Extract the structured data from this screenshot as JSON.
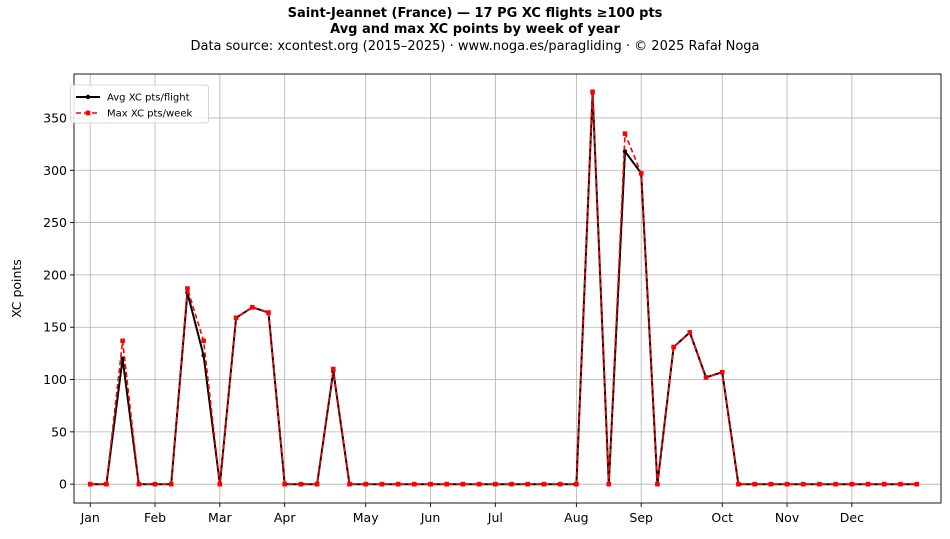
{
  "header": {
    "title": "Saint-Jeannet (France)  —  17 PG XC flights ≥100 pts",
    "subtitle": "Avg and max XC points by week of year",
    "source": "Data source: xcontest.org (2015–2025)  ·  www.noga.es/paragliding  ·  © 2025 Rafał Noga"
  },
  "chart_data": {
    "type": "line",
    "title": "Saint-Jeannet (France)  —  17 PG XC flights ≥100 pts",
    "subtitle": "Avg and max XC points by week of year",
    "xlabel": "",
    "ylabel": "XC points",
    "x": [
      1,
      2,
      3,
      4,
      5,
      6,
      7,
      8,
      9,
      10,
      11,
      12,
      13,
      14,
      15,
      16,
      17,
      18,
      19,
      20,
      21,
      22,
      23,
      24,
      25,
      26,
      27,
      28,
      29,
      30,
      31,
      32,
      33,
      34,
      35,
      36,
      37,
      38,
      39,
      40,
      41,
      42,
      43,
      44,
      45,
      46,
      47,
      48,
      49,
      50,
      51,
      52
    ],
    "xlim": [
      0,
      53.5
    ],
    "xticks": [
      {
        "label": "Jan",
        "x": 1
      },
      {
        "label": "Feb",
        "x": 5
      },
      {
        "label": "Mar",
        "x": 9
      },
      {
        "label": "Apr",
        "x": 13
      },
      {
        "label": "May",
        "x": 18
      },
      {
        "label": "Jun",
        "x": 22
      },
      {
        "label": "Jul",
        "x": 26
      },
      {
        "label": "Aug",
        "x": 31
      },
      {
        "label": "Sep",
        "x": 35
      },
      {
        "label": "Oct",
        "x": 40
      },
      {
        "label": "Nov",
        "x": 44
      },
      {
        "label": "Dec",
        "x": 48
      }
    ],
    "ylim": [
      -18,
      392
    ],
    "yticks": [
      0,
      50,
      100,
      150,
      200,
      250,
      300,
      350
    ],
    "grid": true,
    "legend_position": "upper left",
    "series": [
      {
        "name": "Avg XC pts/flight",
        "color": "#000000",
        "style": "solid",
        "marker": "circle",
        "values": [
          0,
          0,
          120,
          0,
          0,
          0,
          183,
          123,
          0,
          159,
          169,
          164,
          0,
          0,
          0,
          108,
          0,
          0,
          0,
          0,
          0,
          0,
          0,
          0,
          0,
          0,
          0,
          0,
          0,
          0,
          0,
          374,
          0,
          318,
          297,
          0,
          131,
          145,
          102,
          107,
          0,
          0,
          0,
          0,
          0,
          0,
          0,
          0,
          0,
          0,
          0,
          0
        ]
      },
      {
        "name": "Max XC pts/week",
        "color": "#ff0000",
        "style": "dashed",
        "marker": "square",
        "values": [
          0,
          0,
          137,
          0,
          0,
          0,
          187,
          137,
          0,
          159,
          169,
          164,
          0,
          0,
          0,
          110,
          0,
          0,
          0,
          0,
          0,
          0,
          0,
          0,
          0,
          0,
          0,
          0,
          0,
          0,
          0,
          375,
          0,
          335,
          297,
          0,
          131,
          145,
          102,
          107,
          0,
          0,
          0,
          0,
          0,
          0,
          0,
          0,
          0,
          0,
          0,
          0
        ]
      }
    ]
  }
}
